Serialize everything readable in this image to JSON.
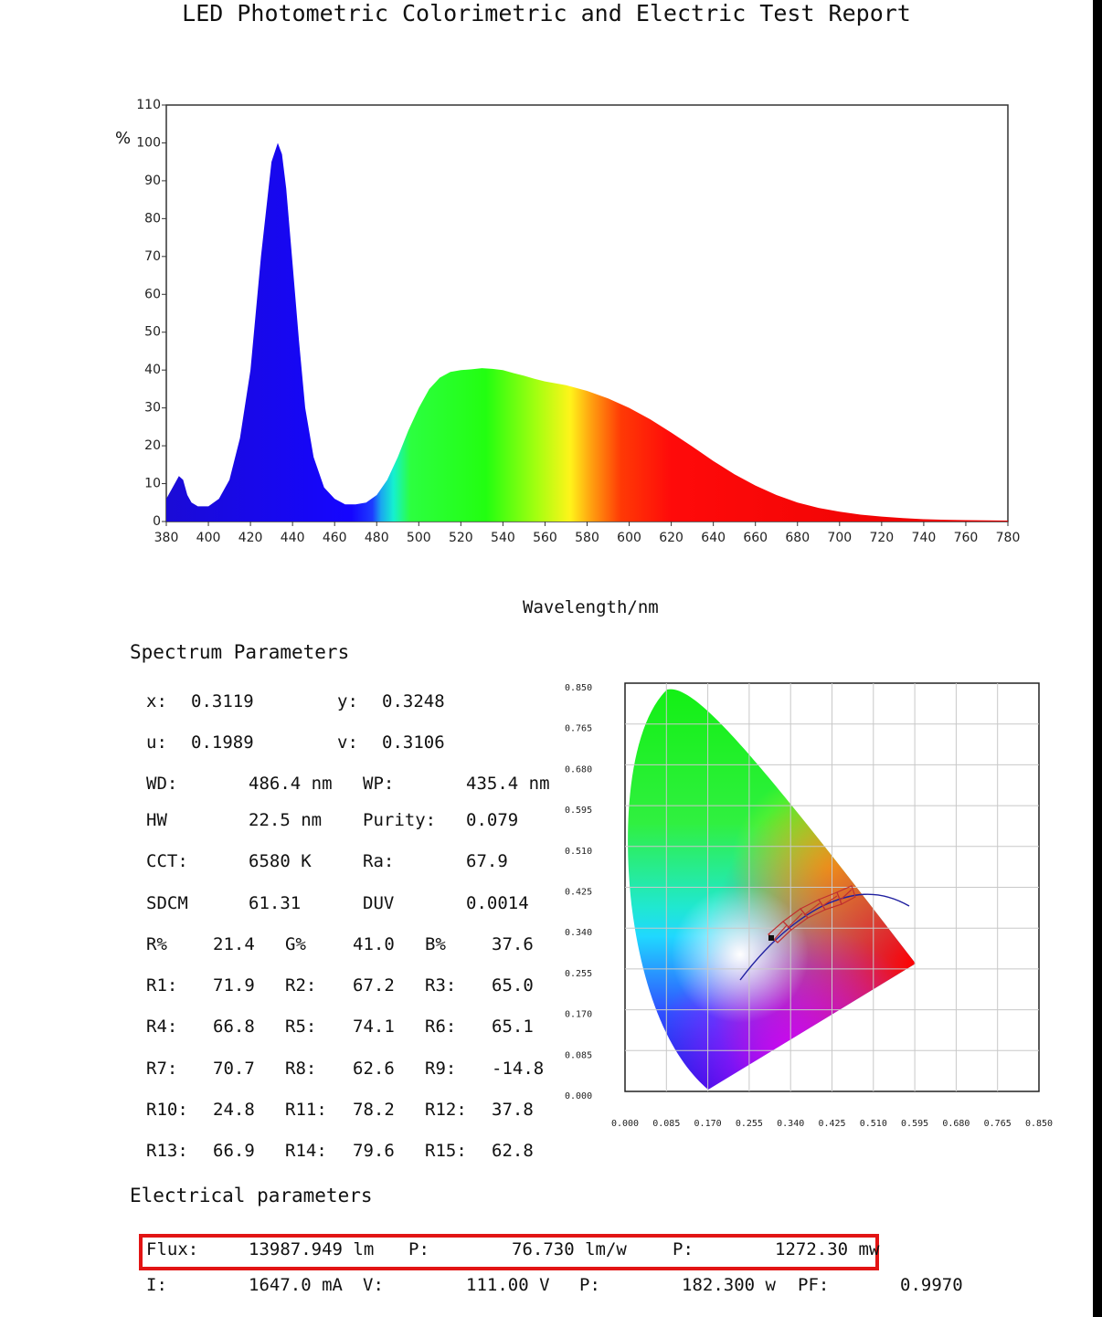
{
  "report_title": "LED Photometric Colorimetric and Electric Test Report",
  "chart_data": {
    "type": "area",
    "title": "",
    "ylabel": "%",
    "xlabel": "Wavelength/nm",
    "xlim": [
      380,
      780
    ],
    "ylim": [
      0,
      110
    ],
    "x_ticks": [
      "380",
      "400",
      "420",
      "440",
      "460",
      "480",
      "500",
      "520",
      "540",
      "560",
      "580",
      "600",
      "620",
      "640",
      "660",
      "680",
      "700",
      "720",
      "740",
      "760",
      "780"
    ],
    "y_ticks": [
      "0",
      "10",
      "20",
      "30",
      "40",
      "50",
      "60",
      "70",
      "80",
      "90",
      "100",
      "110"
    ],
    "grid": false,
    "x": [
      380,
      383,
      386,
      388,
      390,
      392,
      395,
      400,
      405,
      410,
      415,
      420,
      425,
      430,
      433,
      435,
      437,
      440,
      443,
      446,
      450,
      455,
      460,
      465,
      470,
      475,
      480,
      485,
      490,
      495,
      500,
      505,
      510,
      515,
      520,
      525,
      530,
      535,
      540,
      545,
      550,
      555,
      560,
      570,
      580,
      590,
      600,
      610,
      620,
      630,
      640,
      650,
      660,
      670,
      680,
      690,
      700,
      710,
      720,
      730,
      740,
      750,
      760,
      770,
      780
    ],
    "values": [
      6,
      9,
      12,
      11,
      7,
      5,
      4,
      4,
      6,
      11,
      22,
      40,
      70,
      95,
      100,
      97,
      88,
      68,
      48,
      30,
      17,
      9,
      6,
      4.5,
      4.5,
      5,
      7,
      11,
      17,
      24,
      30,
      35,
      38,
      39.5,
      40,
      40.2,
      40.5,
      40.3,
      40,
      39.2,
      38.5,
      37.7,
      37,
      36,
      34.5,
      32.5,
      30,
      27,
      23.5,
      19.8,
      16,
      12.5,
      9.5,
      7,
      5,
      3.6,
      2.6,
      1.8,
      1.3,
      0.9,
      0.6,
      0.45,
      0.35,
      0.3,
      0.25
    ]
  },
  "spectrum": {
    "heading": "Spectrum Parameters",
    "pairs": [
      {
        "l1": "x:",
        "v1": "0.3119",
        "l2": "y:",
        "v2": "0.3248"
      },
      {
        "l1": "u:",
        "v1": "0.1989",
        "l2": "v:",
        "v2": "0.3106"
      }
    ],
    "rows4": [
      {
        "l1": "WD:",
        "v1": "486.4 nm",
        "l2": "WP:",
        "v2": "435.4 nm"
      },
      {
        "l1": "HW",
        "v1": "22.5 nm",
        "l2": "Purity:",
        "v2": "0.079"
      },
      {
        "l1": "CCT:",
        "v1": "6580 K",
        "l2": "Ra:",
        "v2": "67.9"
      },
      {
        "l1": "SDCM",
        "v1": "61.31",
        "l2": "DUV",
        "v2": "0.0014"
      }
    ],
    "rows6": [
      {
        "l1": "R%",
        "v1": "21.4",
        "l2": "G%",
        "v2": "41.0",
        "l3": "B%",
        "v3": "37.6"
      },
      {
        "l1": "R1:",
        "v1": "71.9",
        "l2": "R2:",
        "v2": "67.2",
        "l3": "R3:",
        "v3": "65.0"
      },
      {
        "l1": "R4:",
        "v1": "66.8",
        "l2": "R5:",
        "v2": "74.1",
        "l3": "R6:",
        "v3": "65.1"
      },
      {
        "l1": "R7:",
        "v1": "70.7",
        "l2": "R8:",
        "v2": "62.6",
        "l3": "R9:",
        "v3": "-14.8"
      },
      {
        "l1": "R10:",
        "v1": "24.8",
        "l2": "R11:",
        "v2": "78.2",
        "l3": "R12:",
        "v3": "37.8"
      },
      {
        "l1": "R13:",
        "v1": "66.9",
        "l2": "R14:",
        "v2": "79.6",
        "l3": "R15:",
        "v3": "62.8"
      }
    ]
  },
  "cie": {
    "y_ticks": [
      "0.850",
      "0.765",
      "0.680",
      "0.595",
      "0.510",
      "0.425",
      "0.340",
      "0.255",
      "0.170",
      "0.085",
      "0.000"
    ],
    "x_ticks": [
      "0.000",
      "0.085",
      "0.170",
      "0.255",
      "0.340",
      "0.425",
      "0.510",
      "0.595",
      "0.680",
      "0.765",
      "0.850"
    ],
    "point": {
      "x": 0.3119,
      "y": 0.3248
    }
  },
  "electrical": {
    "heading": "Electrical parameters",
    "row1": {
      "l1": "Flux:",
      "v1": "13987.949 lm",
      "l2": "P:",
      "v2": "76.730 lm/w",
      "l3": "P:",
      "v3": "1272.30 mw"
    },
    "row2": {
      "l1": "I:",
      "v1": "1647.0 mA",
      "l2": "V:",
      "v2": "111.00 V",
      "l3": "P:",
      "v3": "182.300 w",
      "l4": "PF:",
      "v4": "0.9970"
    }
  },
  "colors": {
    "highlight": "#e21414"
  }
}
